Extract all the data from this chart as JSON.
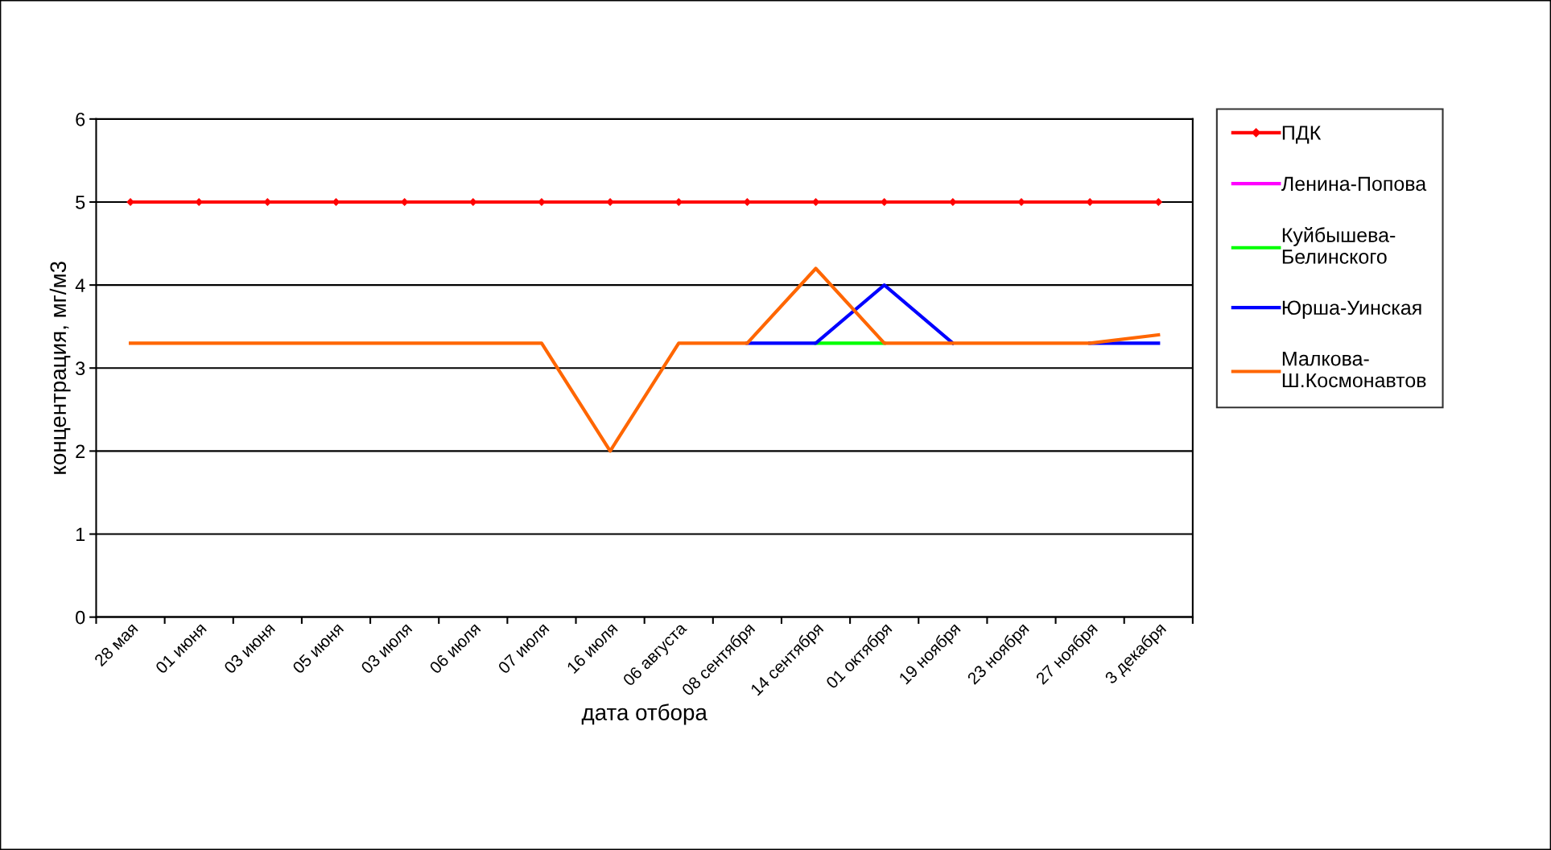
{
  "chart_data": {
    "type": "line",
    "xlabel": "дата отбора",
    "ylabel": "концентрация, мг/м3",
    "categories": [
      "28 мая",
      "01 июня",
      "03 июня",
      "05 июня",
      "03 июля",
      "06 июля",
      "07 июля",
      "16 июля",
      "06 августа",
      "08 сентября",
      "14 сентября",
      "01 октября",
      "19 ноября",
      "23 ноября",
      "27 ноября",
      "3 декабря"
    ],
    "series": [
      {
        "name": "ПДК",
        "color": "#ff0000",
        "marker": "diamond",
        "values": [
          5,
          5,
          5,
          5,
          5,
          5,
          5,
          5,
          5,
          5,
          5,
          5,
          5,
          5,
          5,
          5
        ]
      },
      {
        "name": "Ленина-Попова",
        "color": "#ff00ff",
        "values": [
          null,
          null,
          null,
          null,
          null,
          null,
          null,
          null,
          null,
          null,
          null,
          null,
          null,
          null,
          null,
          null
        ]
      },
      {
        "name": "Куйбышева-\nБелинского",
        "color": "#00ff00",
        "values": [
          null,
          null,
          null,
          null,
          null,
          null,
          null,
          null,
          null,
          null,
          3.3,
          3.3,
          null,
          null,
          null,
          null
        ]
      },
      {
        "name": "Юрша-Уинская",
        "color": "#0000ff",
        "values": [
          null,
          null,
          null,
          null,
          null,
          null,
          null,
          null,
          null,
          3.3,
          3.3,
          4.0,
          3.3,
          null,
          3.3,
          3.3
        ]
      },
      {
        "name": "Малкова-\nШ.Космонавтов",
        "color": "#ff6600",
        "values": [
          3.3,
          3.3,
          3.3,
          3.3,
          3.3,
          3.3,
          3.3,
          2.0,
          3.3,
          3.3,
          4.2,
          3.3,
          3.3,
          3.3,
          3.3,
          3.4
        ]
      }
    ],
    "ylim": [
      0,
      6
    ],
    "yticks": [
      0,
      1,
      2,
      3,
      4,
      5,
      6
    ],
    "grid": "y",
    "legend": "right",
    "marker": "none",
    "line_style": "solid"
  }
}
